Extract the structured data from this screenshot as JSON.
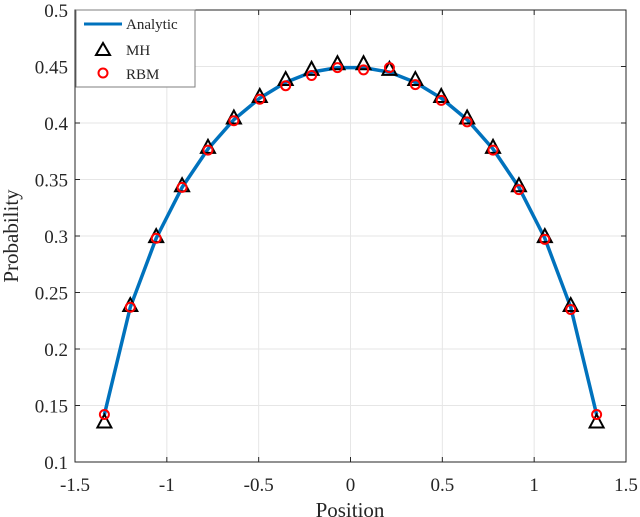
{
  "chart_data": {
    "type": "line",
    "title": "",
    "xlabel": "Position",
    "ylabel": "Probability",
    "xlim": [
      -1.5,
      1.5
    ],
    "ylim": [
      0.1,
      0.5
    ],
    "grid": true,
    "legend_position": "upper-left",
    "x_ticks": [
      "-1.5",
      "-1",
      "-0.5",
      "0",
      "0.5",
      "1",
      "1.5"
    ],
    "y_ticks": [
      "0.1",
      "0.15",
      "0.2",
      "0.25",
      "0.3",
      "0.35",
      "0.4",
      "0.45",
      "0.5"
    ],
    "x": [
      -1.34,
      -1.199,
      -1.058,
      -0.917,
      -0.776,
      -0.635,
      -0.494,
      -0.353,
      -0.212,
      -0.071,
      0.071,
      0.212,
      0.353,
      0.494,
      0.635,
      0.776,
      0.917,
      1.058,
      1.199,
      1.34
    ],
    "series": [
      {
        "name": "Analytic",
        "style": "line",
        "color": "#0072BD",
        "values": [
          0.142,
          0.237,
          0.298,
          0.343,
          0.377,
          0.403,
          0.422,
          0.436,
          0.445,
          0.449,
          0.449,
          0.445,
          0.436,
          0.422,
          0.403,
          0.377,
          0.343,
          0.298,
          0.237,
          0.142
        ]
      },
      {
        "name": "MH",
        "style": "marker-triangle",
        "color": "#000000",
        "values": [
          0.135,
          0.238,
          0.299,
          0.344,
          0.378,
          0.404,
          0.423,
          0.438,
          0.447,
          0.452,
          0.452,
          0.447,
          0.438,
          0.423,
          0.404,
          0.378,
          0.344,
          0.299,
          0.238,
          0.135
        ]
      },
      {
        "name": "RBM",
        "style": "marker-circle",
        "color": "#FF0000",
        "values": [
          0.142,
          0.237,
          0.298,
          0.343,
          0.376,
          0.402,
          0.421,
          0.433,
          0.442,
          0.449,
          0.447,
          0.449,
          0.434,
          0.42,
          0.401,
          0.376,
          0.341,
          0.297,
          0.235,
          0.142
        ]
      }
    ]
  },
  "legend": {
    "items": [
      {
        "label": "Analytic"
      },
      {
        "label": "MH"
      },
      {
        "label": "RBM"
      }
    ]
  }
}
